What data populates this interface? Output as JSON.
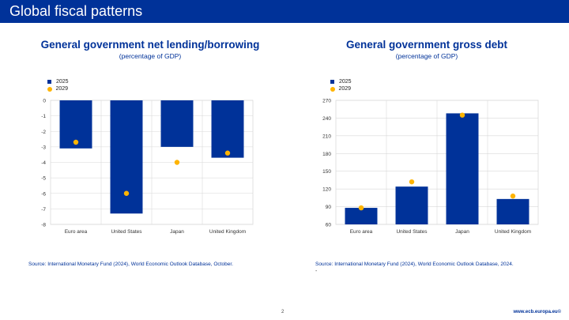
{
  "header": {
    "title": "Global fiscal patterns"
  },
  "charts": [
    {
      "title": "General government net lending/borrowing",
      "subtitle": "(percentage of GDP)",
      "legend": {
        "bar": "2025",
        "dot": "2029"
      },
      "source": "Source: International Monetary Fund (2024), World Economic Outlook Database, October."
    },
    {
      "title": "General government gross debt",
      "subtitle": "(percentage of GDP)",
      "legend": {
        "bar": "2025",
        "dot": "2029"
      },
      "source": "Source: International Monetary Fund (2024), World Economic Outlook Database, 2024."
    }
  ],
  "chart_data": [
    {
      "type": "bar",
      "title": "General government net lending/borrowing",
      "subtitle": "(percentage of GDP)",
      "categories": [
        "Euro area",
        "United States",
        "Japan",
        "United Kingdom"
      ],
      "series": [
        {
          "name": "2025",
          "kind": "bar",
          "values": [
            -3.1,
            -7.3,
            -3.0,
            -3.7
          ]
        },
        {
          "name": "2029",
          "kind": "dot",
          "values": [
            -2.7,
            -6.0,
            -4.0,
            -3.4
          ]
        }
      ],
      "ylim": [
        -8,
        0
      ],
      "yticks": [
        0,
        -1,
        -2,
        -3,
        -4,
        -5,
        -6,
        -7,
        -8
      ],
      "grid": true,
      "legend_position": "top-left",
      "colors": {
        "bar": "#003299",
        "dot": "#ffb400",
        "grid": "#d9d9d9"
      }
    },
    {
      "type": "bar",
      "title": "General government gross debt",
      "subtitle": "(percentage of GDP)",
      "categories": [
        "Euro area",
        "United States",
        "Japan",
        "United Kingdom"
      ],
      "series": [
        {
          "name": "2025",
          "kind": "bar",
          "values": [
            88,
            124,
            248,
            103
          ]
        },
        {
          "name": "2029",
          "kind": "dot",
          "values": [
            88,
            132,
            245,
            108
          ]
        }
      ],
      "ylim": [
        60,
        270
      ],
      "yticks": [
        60,
        90,
        120,
        150,
        180,
        210,
        240,
        270
      ],
      "grid": true,
      "legend_position": "top-left",
      "colors": {
        "bar": "#003299",
        "dot": "#ffb400",
        "grid": "#d9d9d9"
      }
    }
  ],
  "footer": {
    "page": "2",
    "url": "www.ecb.europa.eu©"
  },
  "misc": {
    "dash": "-"
  }
}
